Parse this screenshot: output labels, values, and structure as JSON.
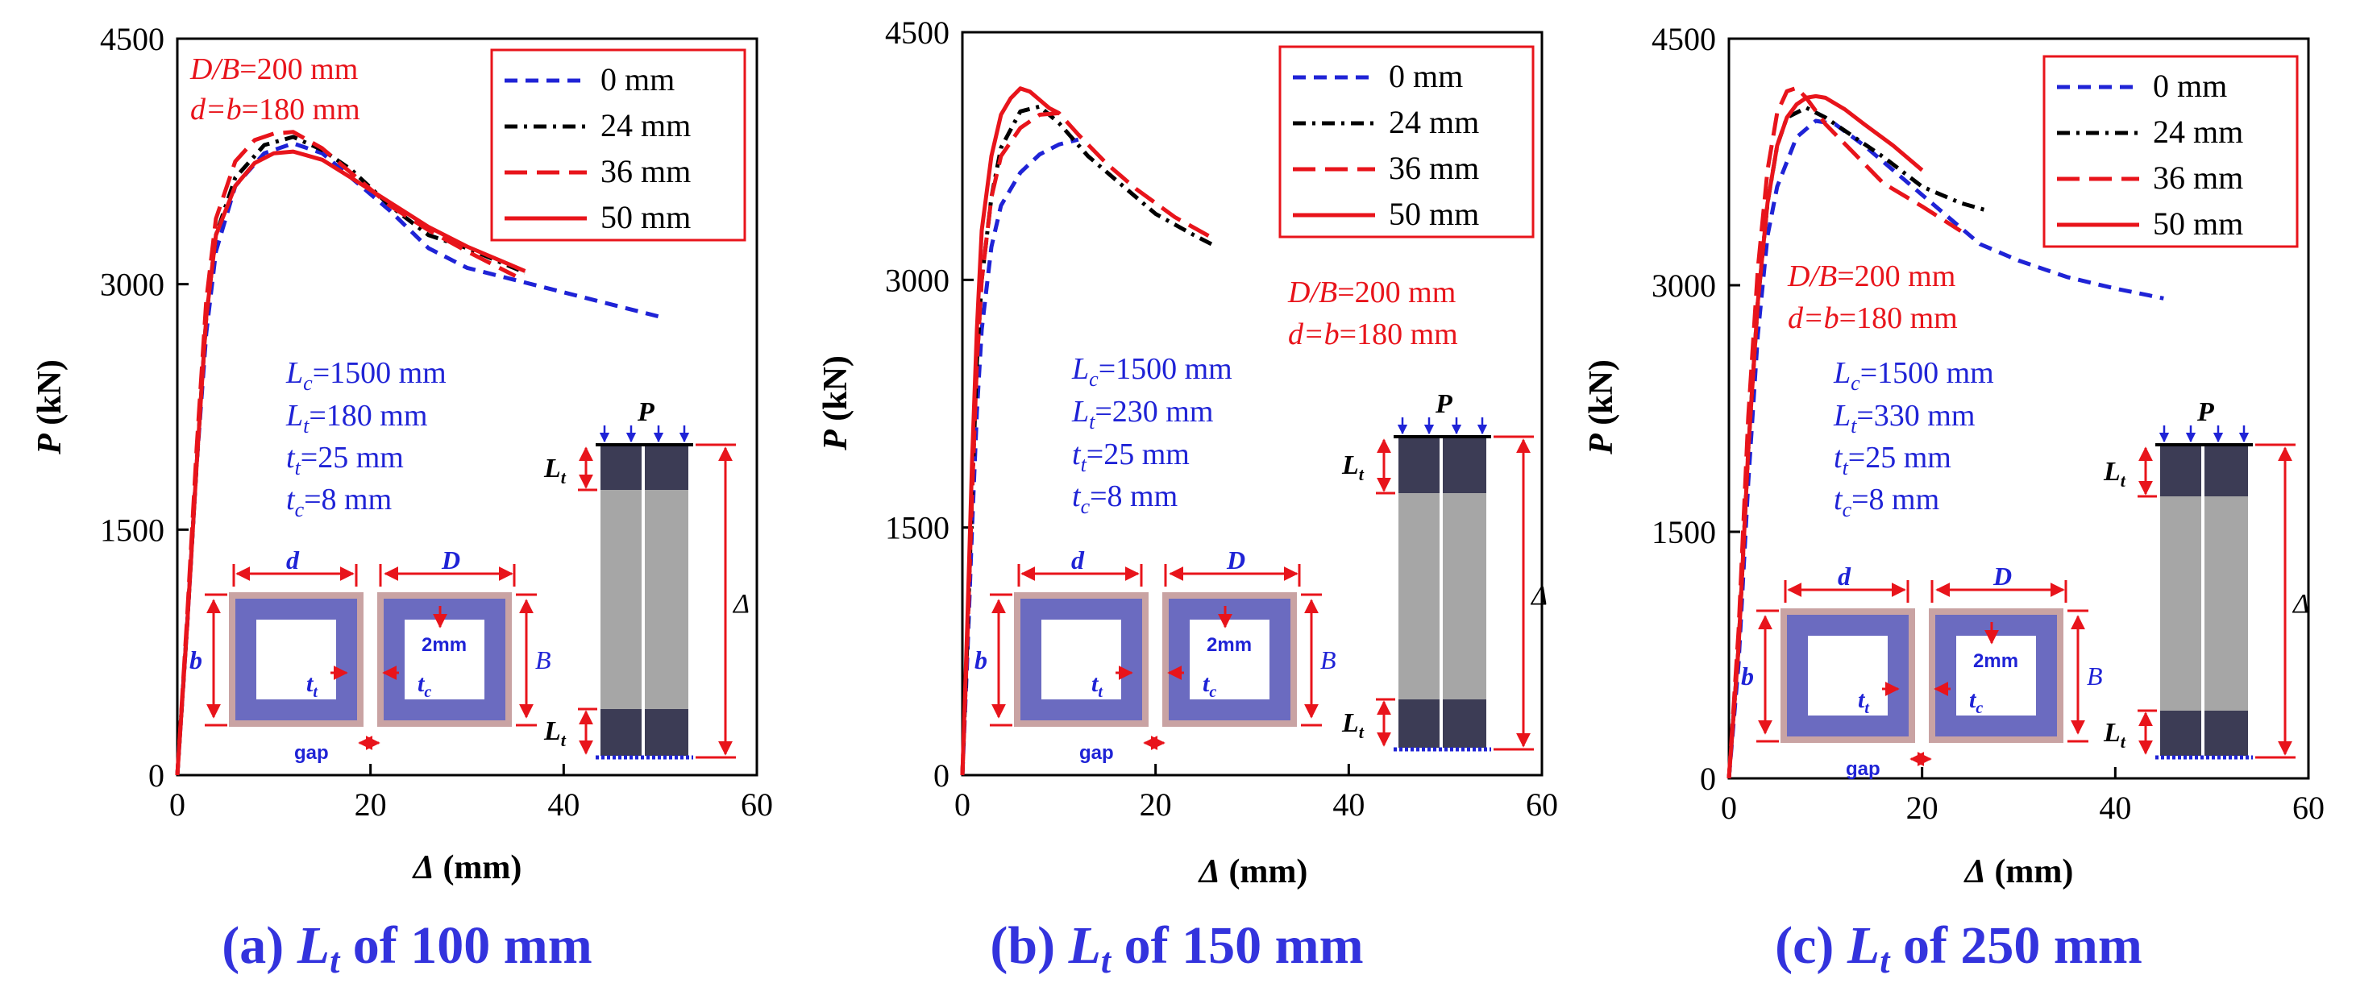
{
  "figure": {
    "x_axis_label": {
      "sym": "Δ",
      "unit": " (mm)"
    },
    "y_axis_label": {
      "sym": "P",
      "unit": " (kN)"
    },
    "colors": {
      "blue": "#1f23d6",
      "black": "#000000",
      "red": "#e8141b",
      "caption": "#3333dd",
      "steel": "#6b6bc0",
      "gap_fill": "#c9a3a3",
      "column_light": "#a6a6a6",
      "column_dark": "#3c3c55"
    }
  },
  "chart_data": [
    {
      "type": "line",
      "caption": {
        "prefix": "(a) ",
        "sym_main": "L",
        "sym_sub": "t",
        "suffix": " of 100 mm"
      },
      "xlim": [
        0,
        60
      ],
      "ylim": [
        0,
        4500
      ],
      "xticks": [
        "0",
        "20",
        "40",
        "60"
      ],
      "yticks": [
        "0",
        "1500",
        "3000",
        "4500"
      ],
      "legend": [
        "0 mm",
        "24 mm",
        "36 mm",
        "50 mm"
      ],
      "geometry_note": {
        "line1": {
          "sym": "D/B",
          "val": "=200 mm"
        },
        "line2": {
          "sym": "d=b",
          "val": "=180 mm"
        }
      },
      "params": {
        "Lc": "=1500 mm",
        "Lt": "=180 mm",
        "tt": "=25 mm",
        "tc": "=8 mm"
      },
      "series": [
        {
          "name": "0 mm",
          "style": "blue-dash",
          "points": [
            [
              0,
              0
            ],
            [
              1,
              900
            ],
            [
              2,
              1900
            ],
            [
              3,
              2700
            ],
            [
              4,
              3200
            ],
            [
              6,
              3600
            ],
            [
              9,
              3800
            ],
            [
              12,
              3860
            ],
            [
              15,
              3800
            ],
            [
              18,
              3650
            ],
            [
              22,
              3450
            ],
            [
              26,
              3220
            ],
            [
              30,
              3100
            ],
            [
              40,
              2950
            ],
            [
              50,
              2800
            ]
          ]
        },
        {
          "name": "24 mm",
          "style": "black-dashdot",
          "points": [
            [
              0,
              0
            ],
            [
              1,
              900
            ],
            [
              2,
              1900
            ],
            [
              3,
              2800
            ],
            [
              4,
              3300
            ],
            [
              6,
              3650
            ],
            [
              9,
              3850
            ],
            [
              12,
              3900
            ],
            [
              15,
              3820
            ],
            [
              18,
              3700
            ],
            [
              22,
              3480
            ],
            [
              26,
              3300
            ],
            [
              30,
              3220
            ],
            [
              36,
              3070
            ]
          ]
        },
        {
          "name": "36 mm",
          "style": "red-longdash",
          "points": [
            [
              0,
              0
            ],
            [
              1,
              950
            ],
            [
              2,
              2000
            ],
            [
              3,
              2900
            ],
            [
              4,
              3400
            ],
            [
              6,
              3750
            ],
            [
              8,
              3880
            ],
            [
              10,
              3920
            ],
            [
              12,
              3930
            ],
            [
              15,
              3830
            ],
            [
              18,
              3680
            ],
            [
              22,
              3480
            ],
            [
              26,
              3330
            ],
            [
              30,
              3200
            ],
            [
              35,
              3050
            ]
          ]
        },
        {
          "name": "50 mm",
          "style": "red-solid",
          "points": [
            [
              0,
              0
            ],
            [
              1,
              900
            ],
            [
              2,
              1900
            ],
            [
              3,
              2800
            ],
            [
              4,
              3300
            ],
            [
              6,
              3600
            ],
            [
              8,
              3740
            ],
            [
              10,
              3800
            ],
            [
              12,
              3810
            ],
            [
              15,
              3760
            ],
            [
              18,
              3650
            ],
            [
              22,
              3500
            ],
            [
              26,
              3350
            ],
            [
              30,
              3230
            ],
            [
              36,
              3080
            ]
          ]
        }
      ]
    },
    {
      "type": "line",
      "caption": {
        "prefix": "(b) ",
        "sym_main": "L",
        "sym_sub": "t",
        "suffix": " of 150 mm"
      },
      "xlim": [
        0,
        60
      ],
      "ylim": [
        0,
        4500
      ],
      "xticks": [
        "0",
        "20",
        "40",
        "60"
      ],
      "yticks": [
        "0",
        "1500",
        "3000",
        "4500"
      ],
      "legend": [
        "0 mm",
        "24 mm",
        "36 mm",
        "50 mm"
      ],
      "geometry_note": {
        "line1": {
          "sym": "D/B",
          "val": "=200 mm"
        },
        "line2": {
          "sym": "d=b",
          "val": "=180 mm"
        }
      },
      "params": {
        "Lc": "=1500 mm",
        "Lt": "=230 mm",
        "tt": "=25 mm",
        "tc": "=8 mm"
      },
      "series": [
        {
          "name": "0 mm",
          "style": "blue-dash",
          "points": [
            [
              0,
              0
            ],
            [
              0.5,
              700
            ],
            [
              1,
              1500
            ],
            [
              1.5,
              2200
            ],
            [
              2,
              2700
            ],
            [
              3,
              3200
            ],
            [
              4,
              3450
            ],
            [
              6,
              3650
            ],
            [
              8,
              3760
            ],
            [
              10,
              3820
            ],
            [
              12,
              3850
            ]
          ]
        },
        {
          "name": "24 mm",
          "style": "black-dashdot",
          "points": [
            [
              0,
              0
            ],
            [
              0.5,
              800
            ],
            [
              1,
              1700
            ],
            [
              1.5,
              2500
            ],
            [
              2,
              3000
            ],
            [
              3,
              3500
            ],
            [
              4,
              3800
            ],
            [
              6,
              4020
            ],
            [
              8,
              4050
            ],
            [
              10,
              3950
            ],
            [
              13,
              3750
            ],
            [
              16,
              3600
            ],
            [
              20,
              3400
            ],
            [
              24,
              3270
            ],
            [
              26,
              3210
            ]
          ]
        },
        {
          "name": "36 mm",
          "style": "red-longdash",
          "points": [
            [
              0,
              0
            ],
            [
              0.5,
              800
            ],
            [
              1,
              1700
            ],
            [
              1.5,
              2500
            ],
            [
              2,
              3000
            ],
            [
              3,
              3500
            ],
            [
              4,
              3750
            ],
            [
              6,
              3920
            ],
            [
              8,
              4000
            ],
            [
              10,
              4010
            ],
            [
              12,
              3880
            ],
            [
              15,
              3700
            ],
            [
              18,
              3550
            ],
            [
              22,
              3380
            ],
            [
              26,
              3250
            ]
          ]
        },
        {
          "name": "50 mm",
          "style": "red-solid",
          "points": [
            [
              0,
              0
            ],
            [
              0.5,
              900
            ],
            [
              1,
              1900
            ],
            [
              1.5,
              2700
            ],
            [
              2,
              3300
            ],
            [
              3,
              3750
            ],
            [
              4,
              4000
            ],
            [
              5,
              4100
            ],
            [
              6,
              4160
            ],
            [
              7,
              4140
            ],
            [
              8,
              4090
            ],
            [
              9,
              4040
            ],
            [
              10,
              4010
            ]
          ]
        }
      ]
    },
    {
      "type": "line",
      "caption": {
        "prefix": "(c) ",
        "sym_main": "L",
        "sym_sub": "t",
        "suffix": " of 250 mm"
      },
      "xlim": [
        0,
        60
      ],
      "ylim": [
        0,
        4500
      ],
      "xticks": [
        "0",
        "20",
        "40",
        "60"
      ],
      "yticks": [
        "0",
        "1500",
        "3000",
        "4500"
      ],
      "legend": [
        "0 mm",
        "24 mm",
        "36 mm",
        "50 mm"
      ],
      "geometry_note": {
        "line1": {
          "sym": "D/B",
          "val": "=200 mm"
        },
        "line2": {
          "sym": "d=b",
          "val": "=180 mm"
        }
      },
      "params": {
        "Lc": "=1500 mm",
        "Lt": "=330 mm",
        "tt": "=25 mm",
        "tc": "=8 mm"
      },
      "series": [
        {
          "name": "0 mm",
          "style": "blue-dash",
          "points": [
            [
              0,
              0
            ],
            [
              1,
              700
            ],
            [
              2,
              1800
            ],
            [
              3,
              2700
            ],
            [
              4,
              3300
            ],
            [
              5,
              3600
            ],
            [
              7,
              3900
            ],
            [
              9,
              4000
            ],
            [
              11,
              3980
            ],
            [
              14,
              3850
            ],
            [
              18,
              3650
            ],
            [
              22,
              3450
            ],
            [
              26,
              3250
            ],
            [
              30,
              3150
            ],
            [
              35,
              3050
            ],
            [
              40,
              2980
            ],
            [
              45,
              2920
            ]
          ]
        },
        {
          "name": "24 mm",
          "style": "black-dashdot",
          "points": [
            [
              0,
              0
            ],
            [
              1,
              800
            ],
            [
              2,
              2000
            ],
            [
              3,
              2900
            ],
            [
              4,
              3500
            ],
            [
              5,
              3850
            ],
            [
              6,
              4020
            ],
            [
              8,
              4080
            ],
            [
              10,
              4020
            ],
            [
              13,
              3900
            ],
            [
              16,
              3780
            ],
            [
              20,
              3600
            ],
            [
              24,
              3500
            ],
            [
              27,
              3450
            ]
          ]
        },
        {
          "name": "36 mm",
          "style": "red-longdash",
          "points": [
            [
              0,
              0
            ],
            [
              1,
              900
            ],
            [
              2,
              2200
            ],
            [
              3,
              3100
            ],
            [
              4,
              3700
            ],
            [
              5,
              4050
            ],
            [
              6,
              4180
            ],
            [
              7,
              4200
            ],
            [
              8,
              4140
            ],
            [
              10,
              3980
            ],
            [
              13,
              3800
            ],
            [
              16,
              3620
            ],
            [
              20,
              3480
            ],
            [
              24,
              3330
            ]
          ]
        },
        {
          "name": "50 mm",
          "style": "red-solid",
          "points": [
            [
              0,
              0
            ],
            [
              1,
              800
            ],
            [
              2,
              2000
            ],
            [
              3,
              2900
            ],
            [
              4,
              3500
            ],
            [
              5,
              3850
            ],
            [
              6,
              4020
            ],
            [
              7,
              4100
            ],
            [
              8,
              4140
            ],
            [
              9,
              4150
            ],
            [
              10,
              4140
            ],
            [
              12,
              4070
            ],
            [
              14,
              3980
            ],
            [
              17,
              3850
            ],
            [
              20,
              3700
            ]
          ]
        }
      ]
    }
  ],
  "inset": {
    "d_label": "d",
    "D_label": "D",
    "b_label": "b",
    "B_label": "B",
    "tt_label": {
      "main": "t",
      "sub": "t"
    },
    "tc_label": {
      "main": "t",
      "sub": "c"
    },
    "gap_2mm": "2mm",
    "gap_label": "gap",
    "P_label": "P",
    "Lt_label": {
      "main": "L",
      "sub": "t"
    },
    "delta_label": "Δ"
  }
}
